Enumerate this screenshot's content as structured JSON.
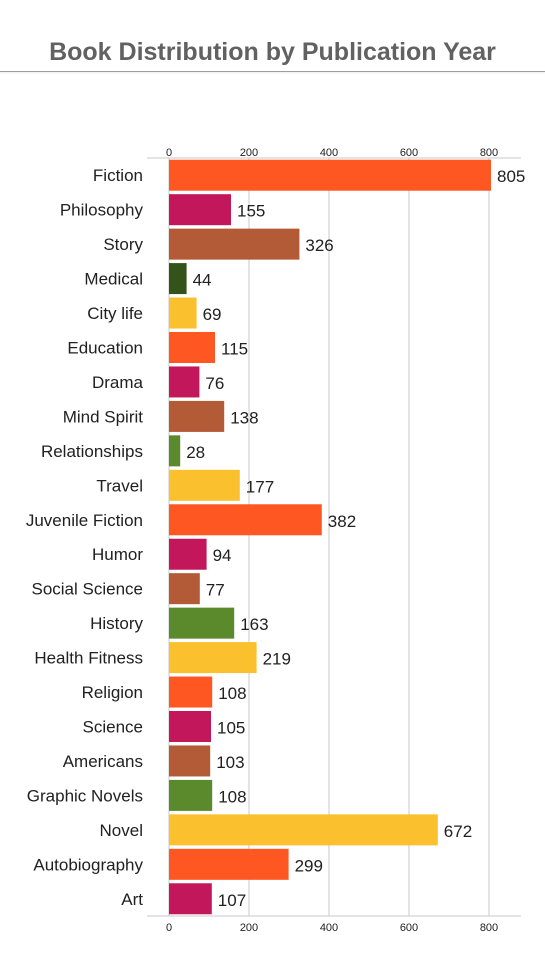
{
  "header": {
    "title": "Book Distribution by Publication Year"
  },
  "chart_data": {
    "type": "bar",
    "orientation": "horizontal",
    "title": "Book Distribution by Publication Year",
    "xlabel": "",
    "ylabel": "",
    "xlim": [
      0,
      880
    ],
    "x_ticks": [
      0,
      200,
      400,
      600,
      800
    ],
    "grid": true,
    "categories": [
      "Fiction",
      "Philosophy",
      "Story",
      "Medical",
      "City life",
      "Education",
      "Drama",
      "Mind Spirit",
      "Relationships",
      "Travel",
      "Juvenile Fiction",
      "Humor",
      "Social Science",
      "History",
      "Health Fitness",
      "Religion",
      "Science",
      "Americans",
      "Graphic Novels",
      "Novel",
      "Autobiography",
      "Art"
    ],
    "values": [
      805,
      155,
      326,
      44,
      69,
      115,
      76,
      138,
      28,
      177,
      382,
      94,
      77,
      163,
      219,
      108,
      105,
      103,
      108,
      672,
      299,
      107
    ],
    "colors": [
      "#ff5722",
      "#c2185b",
      "#b35a36",
      "#33531b",
      "#fbc02d",
      "#ff5722",
      "#c2185b",
      "#b35a36",
      "#5b8a2c",
      "#fbc02d",
      "#ff5722",
      "#c2185b",
      "#b35a36",
      "#5b8a2c",
      "#fbc02d",
      "#ff5722",
      "#c2185b",
      "#b35a36",
      "#5b8a2c",
      "#fbc02d",
      "#ff5722",
      "#c2185b"
    ]
  }
}
